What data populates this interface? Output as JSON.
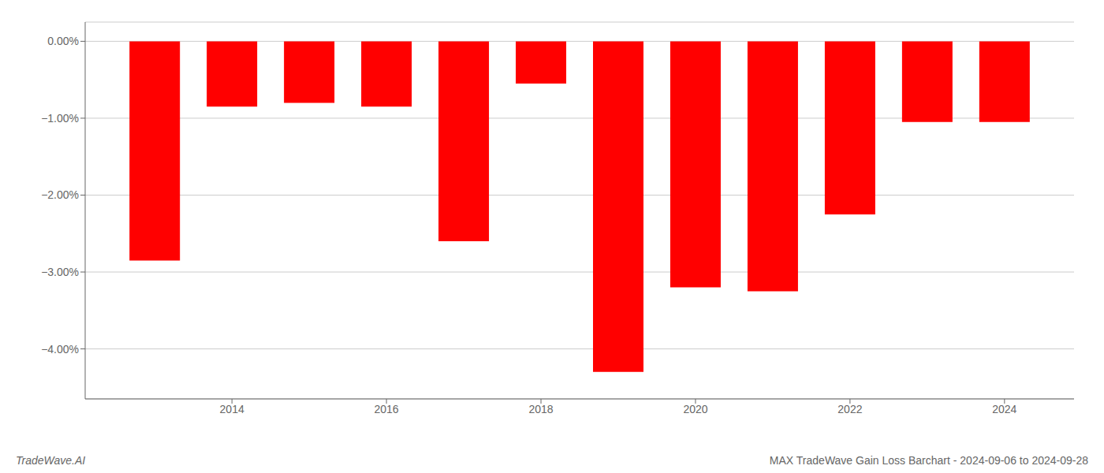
{
  "chart_data": {
    "type": "bar",
    "title": "MAX TradeWave Gain Loss Barchart - 2024-09-06 to 2024-09-28",
    "annotations": [
      "TradeWave.AI"
    ],
    "x": [
      2013,
      2014,
      2015,
      2016,
      2017,
      2018,
      2019,
      2020,
      2021,
      2022,
      2023,
      2024
    ],
    "values": [
      -2.85,
      -0.85,
      -0.8,
      -0.85,
      -2.6,
      -0.55,
      -4.3,
      -3.2,
      -3.25,
      -2.25,
      -1.05,
      -1.05
    ],
    "color": "#ff0000",
    "xlim": [
      2012.1,
      2024.9
    ],
    "xticks": [
      2014,
      2016,
      2018,
      2020,
      2022,
      2024
    ],
    "ylim": [
      -4.65,
      0.25
    ],
    "yticks": [
      {
        "value": 0.0,
        "label": "0.00%"
      },
      {
        "value": -1.0,
        "label": "−1.00%"
      },
      {
        "value": -2.0,
        "label": "−2.00%"
      },
      {
        "value": -3.0,
        "label": "−3.00%"
      },
      {
        "value": -4.0,
        "label": "−4.00%"
      }
    ],
    "grid": true
  }
}
